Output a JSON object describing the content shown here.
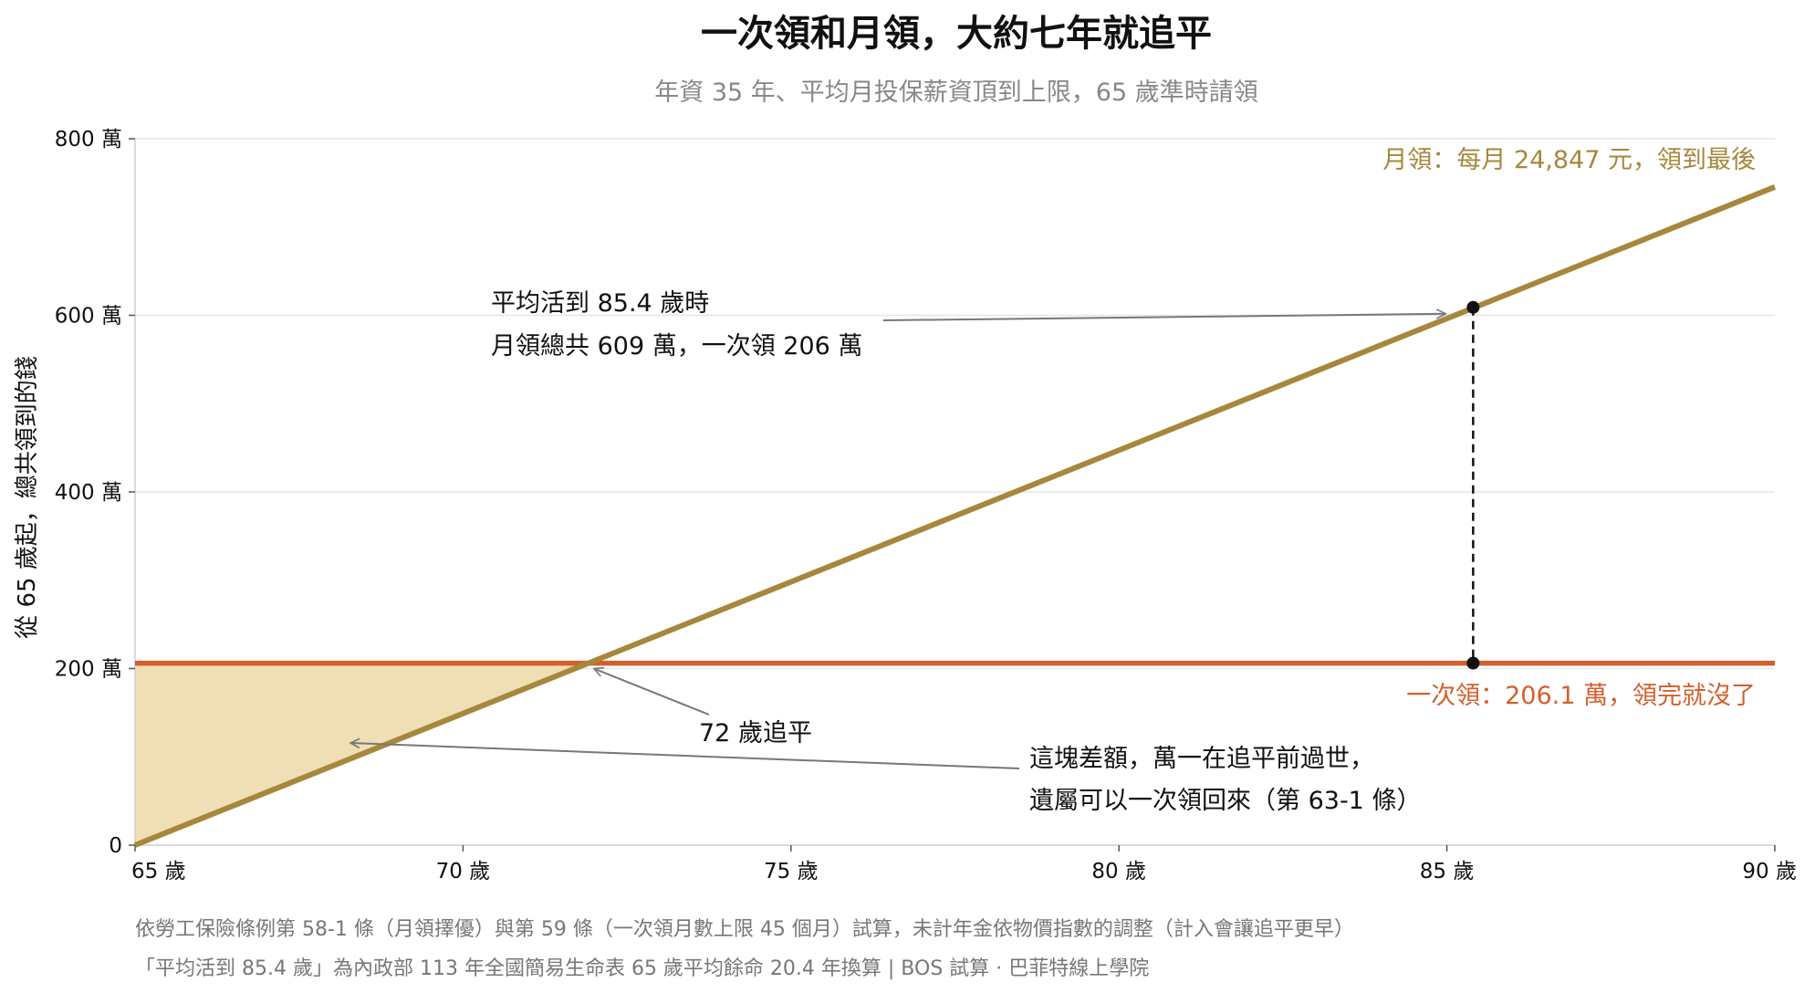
{
  "chart_data": {
    "type": "line",
    "title": "一次領和月領，大約七年就追平",
    "subtitle": "年資 35 年、平均月投保薪資頂到上限，65 歲準時請領",
    "ylabel": "從 65 歲起，總共領到的錢",
    "xlim": [
      65,
      90
    ],
    "ylim": [
      0,
      800
    ],
    "x_ticks": [
      {
        "value": 65,
        "label": "65 歲"
      },
      {
        "value": 70,
        "label": "70 歲"
      },
      {
        "value": 75,
        "label": "75 歲"
      },
      {
        "value": 80,
        "label": "80 歲"
      },
      {
        "value": 85,
        "label": "85 歲"
      },
      {
        "value": 90,
        "label": "90 歲"
      }
    ],
    "y_ticks": [
      {
        "value": 0,
        "label": "0"
      },
      {
        "value": 200,
        "label": "200 萬"
      },
      {
        "value": 400,
        "label": "400 萬"
      },
      {
        "value": 600,
        "label": "600 萬"
      },
      {
        "value": 800,
        "label": "800 萬"
      }
    ],
    "grid": true,
    "series": [
      {
        "name": "月領：每月 24,847 元，領到最後",
        "color": "#A6873C",
        "x": [
          65,
          90
        ],
        "y": [
          0,
          745.4
        ]
      },
      {
        "name": "一次領：206.1 萬，領完就沒了",
        "color": "#D35F2D",
        "x": [
          65,
          90
        ],
        "y": [
          206.1,
          206.1
        ]
      }
    ],
    "fill_color": "#F0DEB5",
    "markers": [
      {
        "x": 85.4,
        "y": 609
      },
      {
        "x": 85.4,
        "y": 206.1
      }
    ],
    "annotations": {
      "life_expectancy": [
        "平均活到 85.4 歲時",
        "月領總共 609 萬，一次領 206 萬"
      ],
      "break_even": "72 歲追平",
      "gap": [
        "這塊差額，萬一在追平前過世，",
        "遺屬可以一次領回來（第 63-1 條）"
      ]
    },
    "footnotes": [
      "依勞工保險條例第 58-1 條（月領擇優）與第 59 條（一次領月數上限 45 個月）試算，未計年金依物價指數的調整（計入會讓追平更早）",
      "「平均活到 85.4 歲」為內政部 113 年全國簡易生命表 65 歲平均餘命 20.4 年換算 | BOS 試算 ·  巴菲特線上學院"
    ]
  }
}
